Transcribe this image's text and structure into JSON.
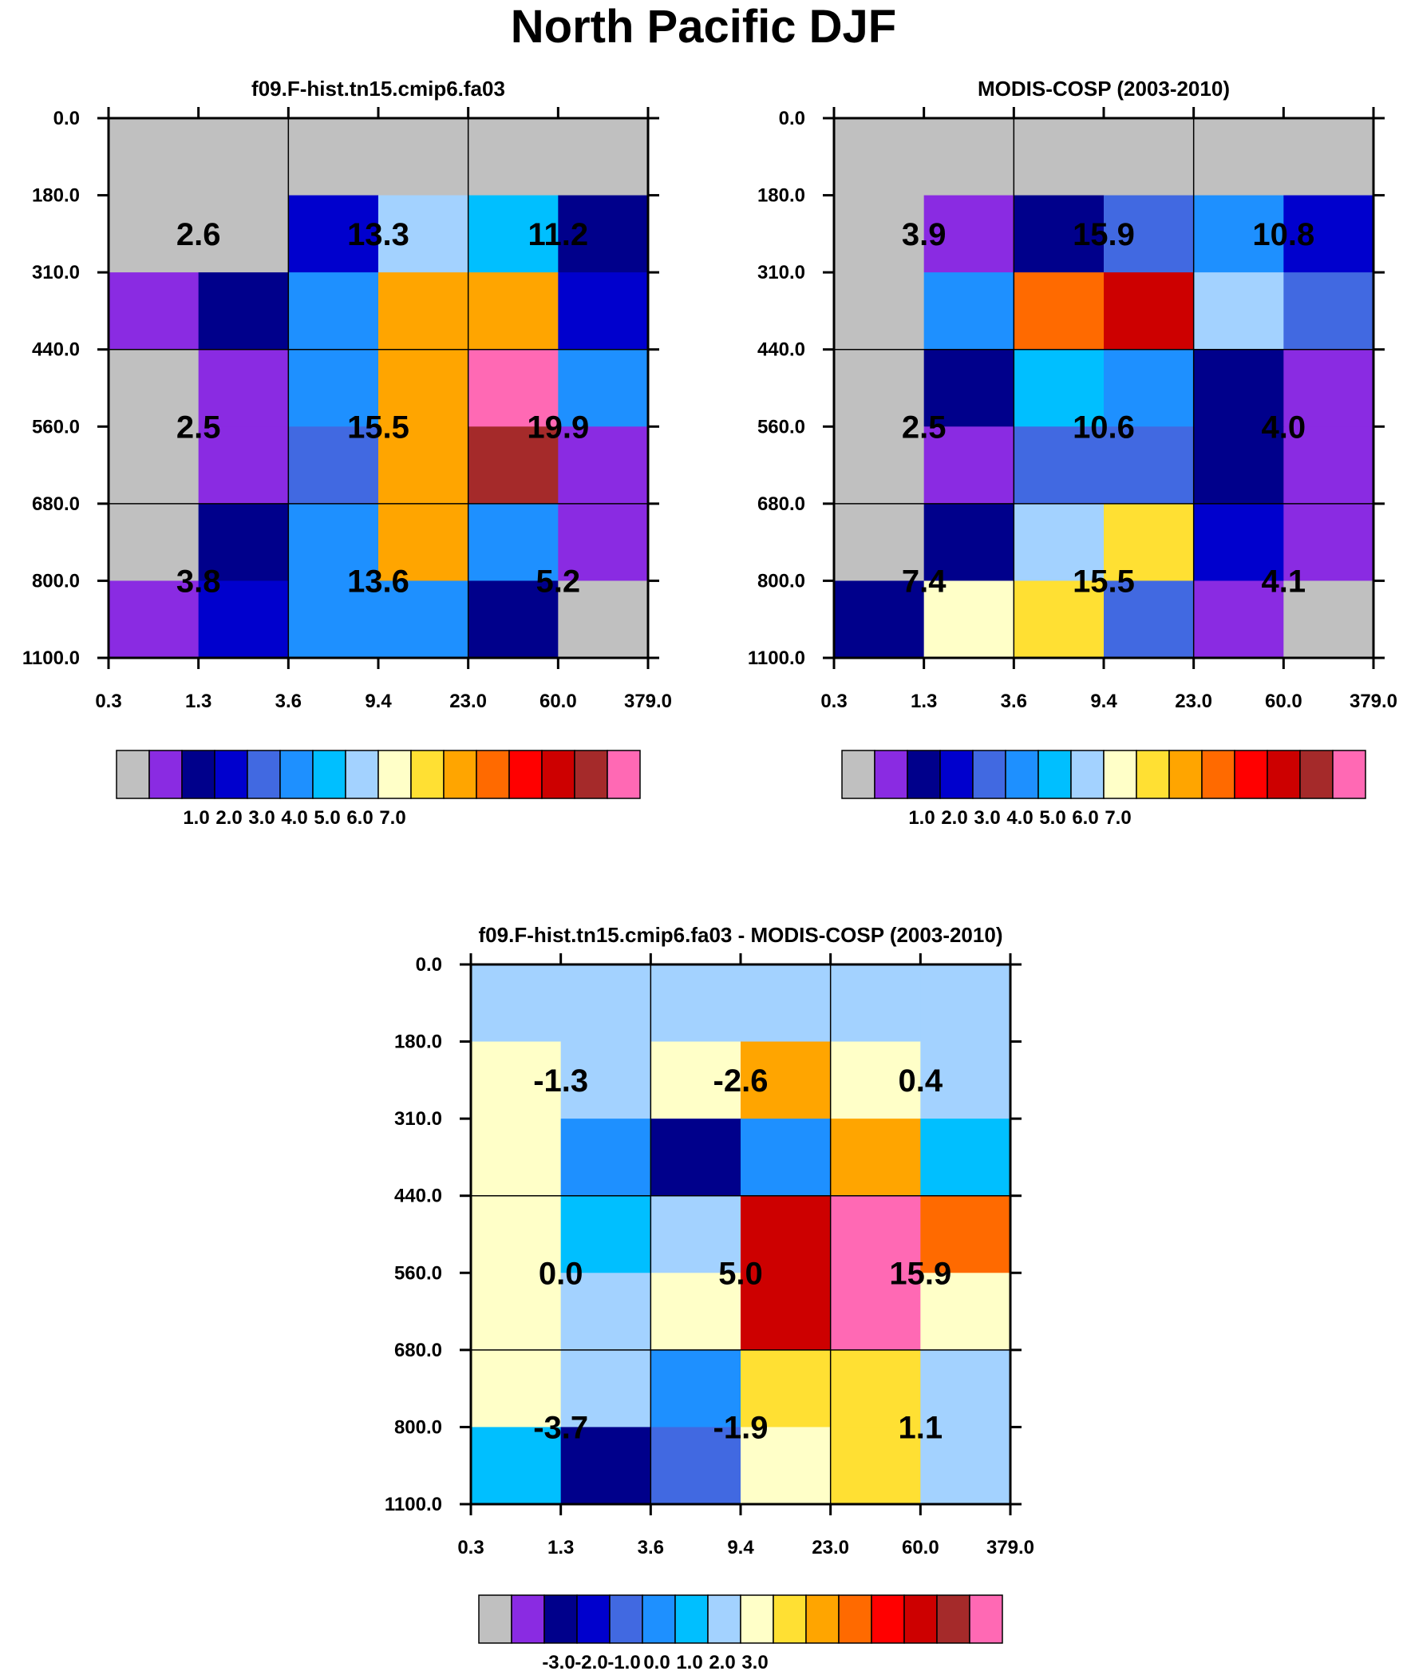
{
  "page_title": "North Pacific DJF",
  "colors": [
    "#c0c0c0",
    "#8a2be2",
    "#00008b",
    "#0000cd",
    "#4169e1",
    "#1e90ff",
    "#00bfff",
    "#a3d2ff",
    "#ffffc8",
    "#ffe033",
    "#ffa500",
    "#ff6a00",
    "#ff0000",
    "#cd0000",
    "#a52a2a",
    "#ff69b4"
  ],
  "chart_data": [
    {
      "type": "heatmap",
      "id": "model",
      "title": "f09.F-hist.tn15.cmip6.fa03",
      "xlabel": "",
      "ylabel": "",
      "x_ticks": [
        "0.3",
        "1.3",
        "3.6",
        "9.4",
        "23.0",
        "60.0",
        "379.0"
      ],
      "y_ticks": [
        "0.0",
        "180.0",
        "310.0",
        "440.0",
        "560.0",
        "680.0",
        "800.0",
        "1100.0"
      ],
      "cell_colors": [
        [
          0,
          0,
          0,
          0,
          0,
          0
        ],
        [
          0,
          0,
          3,
          7,
          6,
          2
        ],
        [
          1,
          2,
          5,
          10,
          10,
          3
        ],
        [
          0,
          1,
          5,
          10,
          15,
          5
        ],
        [
          0,
          1,
          4,
          10,
          14,
          1
        ],
        [
          0,
          2,
          5,
          10,
          5,
          1
        ],
        [
          1,
          3,
          5,
          5,
          2,
          0
        ]
      ],
      "group_values": [
        [
          "2.6",
          "13.3",
          "11.2"
        ],
        [
          "2.5",
          "15.5",
          "19.9"
        ],
        [
          "3.8",
          "13.6",
          "5.2"
        ]
      ],
      "colorbar_labels": [
        "1.0",
        "2.0",
        "3.0",
        "4.0",
        "5.0",
        "6.0",
        "7.0"
      ]
    },
    {
      "type": "heatmap",
      "id": "obs",
      "title": "MODIS-COSP (2003-2010)",
      "xlabel": "",
      "ylabel": "",
      "x_ticks": [
        "0.3",
        "1.3",
        "3.6",
        "9.4",
        "23.0",
        "60.0",
        "379.0"
      ],
      "y_ticks": [
        "0.0",
        "180.0",
        "310.0",
        "440.0",
        "560.0",
        "680.0",
        "800.0",
        "1100.0"
      ],
      "cell_colors": [
        [
          0,
          0,
          0,
          0,
          0,
          0
        ],
        [
          0,
          1,
          2,
          4,
          5,
          3
        ],
        [
          0,
          5,
          11,
          13,
          7,
          4
        ],
        [
          0,
          2,
          6,
          5,
          2,
          1
        ],
        [
          0,
          1,
          4,
          4,
          2,
          1
        ],
        [
          0,
          2,
          7,
          9,
          3,
          1
        ],
        [
          2,
          8,
          9,
          4,
          1,
          0
        ]
      ],
      "group_values": [
        [
          "3.9",
          "15.9",
          "10.8"
        ],
        [
          "2.5",
          "10.6",
          "4.0"
        ],
        [
          "7.4",
          "15.5",
          "4.1"
        ]
      ],
      "colorbar_labels": [
        "1.0",
        "2.0",
        "3.0",
        "4.0",
        "5.0",
        "6.0",
        "7.0"
      ]
    },
    {
      "type": "heatmap",
      "id": "diff",
      "title": "f09.F-hist.tn15.cmip6.fa03 - MODIS-COSP (2003-2010)",
      "xlabel": "",
      "ylabel": "",
      "x_ticks": [
        "0.3",
        "1.3",
        "3.6",
        "9.4",
        "23.0",
        "60.0",
        "379.0"
      ],
      "y_ticks": [
        "0.0",
        "180.0",
        "310.0",
        "440.0",
        "560.0",
        "680.0",
        "800.0",
        "1100.0"
      ],
      "cell_colors": [
        [
          7,
          7,
          7,
          7,
          7,
          7
        ],
        [
          8,
          7,
          8,
          10,
          8,
          7
        ],
        [
          8,
          5,
          2,
          5,
          10,
          6
        ],
        [
          8,
          6,
          7,
          13,
          15,
          11
        ],
        [
          8,
          7,
          8,
          13,
          15,
          8
        ],
        [
          8,
          7,
          5,
          9,
          9,
          7
        ],
        [
          6,
          2,
          4,
          8,
          9,
          7
        ]
      ],
      "group_values": [
        [
          "-1.3",
          "-2.6",
          "0.4"
        ],
        [
          "0.0",
          "5.0",
          "15.9"
        ],
        [
          "-3.7",
          "-1.9",
          "1.1"
        ]
      ],
      "colorbar_labels": [
        "-3.0",
        "-2.0",
        "-1.0",
        "0.0",
        "1.0",
        "2.0",
        "3.0"
      ]
    }
  ]
}
